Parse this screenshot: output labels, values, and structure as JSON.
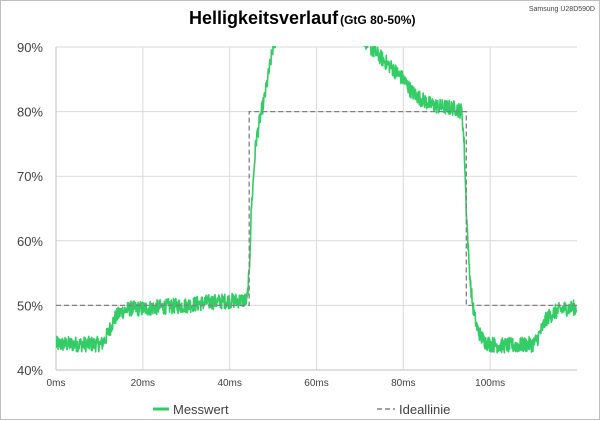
{
  "chart_data": {
    "type": "line",
    "title": "Helligkeitsverlauf",
    "subtitle": "(GtG 80-50%)",
    "source_note": "Samsung U28D590D",
    "xlabel": "",
    "ylabel": "",
    "x_unit": "ms",
    "xlim": [
      0,
      120
    ],
    "ylim": [
      40,
      90
    ],
    "x_ticks": [
      0,
      20,
      40,
      60,
      80,
      100
    ],
    "x_tick_labels": [
      "0ms",
      "20ms",
      "40ms",
      "60ms",
      "80ms",
      "100ms"
    ],
    "y_ticks": [
      40,
      50,
      60,
      70,
      80,
      90
    ],
    "y_tick_labels": [
      "40%",
      "50%",
      "60%",
      "70%",
      "80%",
      "90%"
    ],
    "grid": {
      "x": true,
      "y": true
    },
    "legend_position": "bottom",
    "series": [
      {
        "name": "Messwert",
        "color": "#33cc66",
        "style": "solid",
        "noise_band": 1.2,
        "x": [
          0,
          10.5,
          11.5,
          12.5,
          13.5,
          15,
          17,
          20,
          25,
          30,
          35,
          40,
          44,
          44.5,
          45,
          46,
          47,
          48,
          49,
          50,
          50.5,
          51,
          70,
          73,
          77,
          80,
          82,
          84,
          86,
          88,
          92,
          93.5,
          94,
          94.5,
          95,
          95.5,
          96,
          96.5,
          97,
          98,
          99,
          100,
          102,
          104,
          106,
          108,
          110,
          111,
          112,
          113,
          115,
          117,
          120
        ],
        "y": [
          44,
          44,
          45,
          46.5,
          48,
          49,
          49.5,
          49.5,
          49.8,
          50,
          50.5,
          50.7,
          50.8,
          55,
          65,
          75,
          79,
          82,
          86,
          90,
          91,
          92,
          92,
          89.5,
          87,
          85,
          83,
          82,
          81.2,
          80.8,
          80.5,
          80,
          75,
          65,
          58,
          53,
          50,
          48,
          46.5,
          45,
          44.3,
          44,
          43.8,
          43.8,
          43.8,
          43.9,
          44,
          45,
          46.5,
          48,
          49,
          49.5,
          49.7
        ]
      },
      {
        "name": "Ideallinie",
        "color": "#808080",
        "style": "dashed",
        "x": [
          0,
          44.5,
          44.5,
          94.5,
          94.5,
          120
        ],
        "y": [
          50,
          50,
          80,
          80,
          50,
          50
        ]
      }
    ]
  },
  "colors": {
    "grid": "#d9d9d9",
    "axis": "#bfbfbf",
    "frame": "#bfbfbf"
  }
}
